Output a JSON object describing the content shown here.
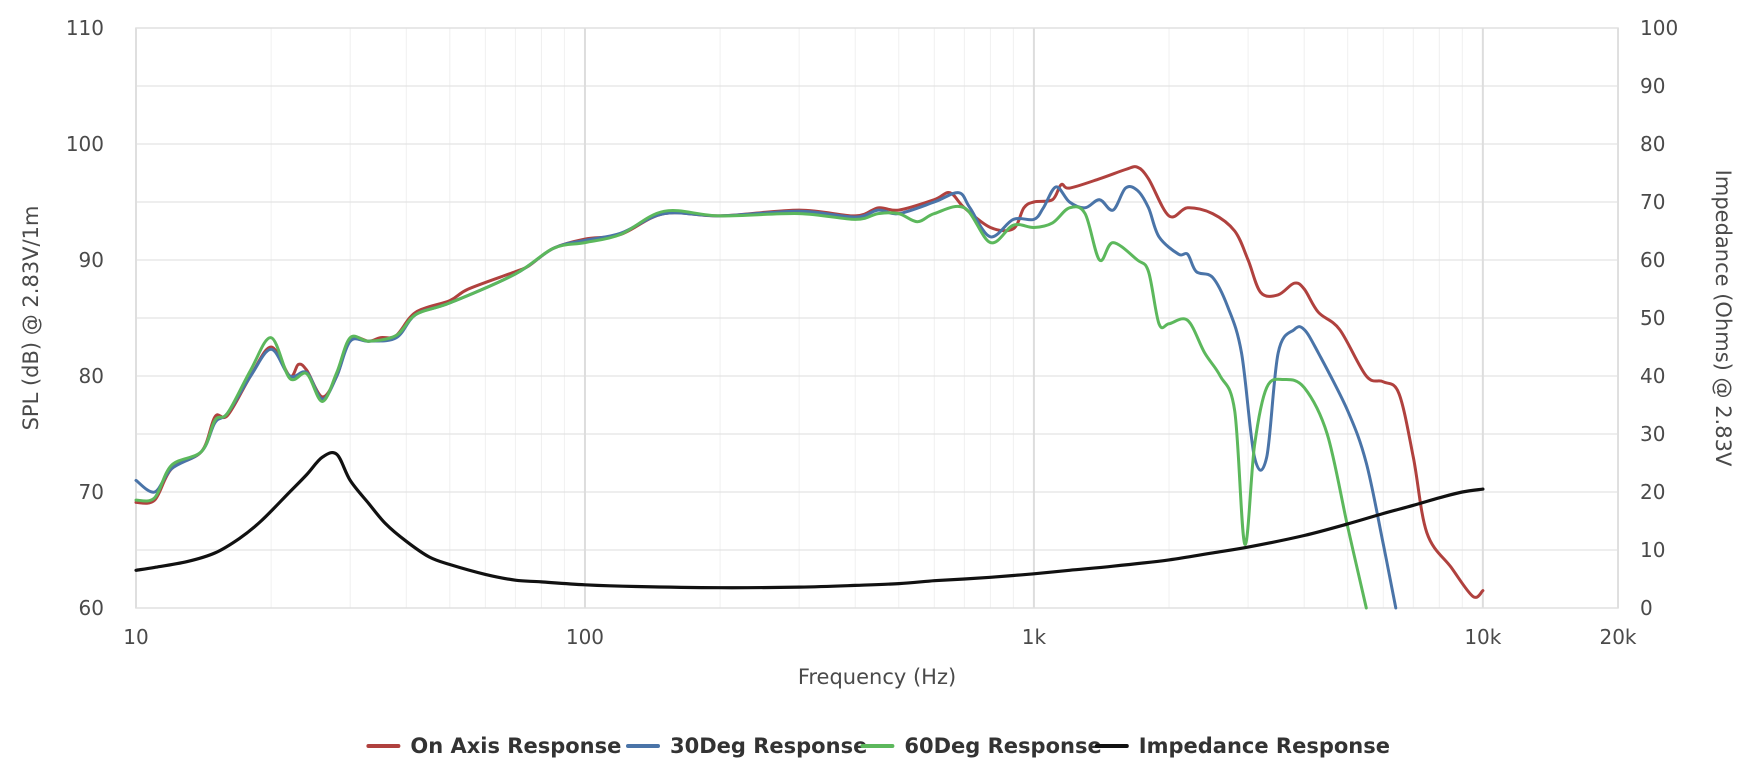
{
  "chart_data": {
    "type": "line",
    "xscale": "log",
    "xlim": [
      10,
      20000
    ],
    "x_ticks": [
      {
        "value": 10,
        "label": "10"
      },
      {
        "value": 100,
        "label": "100"
      },
      {
        "value": 1000,
        "label": "1k"
      },
      {
        "value": 10000,
        "label": "10k"
      },
      {
        "value": 20000,
        "label": "20k"
      }
    ],
    "xlabel": "Frequency (Hz)",
    "ylabel_left": "SPL (dB) @ 2.83V/1m",
    "ylabel_right": "Impedance (Ohms) @ 2.83V",
    "ylim_left": [
      60,
      110
    ],
    "ylim_right": [
      0,
      100
    ],
    "y_ticks_left": [
      "60",
      "70",
      "80",
      "90",
      "100",
      "110"
    ],
    "y_ticks_right": [
      "0",
      "10",
      "20",
      "30",
      "40",
      "50",
      "60",
      "70",
      "80",
      "90",
      "100"
    ],
    "grid": true,
    "legend_position": "bottom",
    "series": [
      {
        "name": "On Axis Response",
        "axis": "left",
        "color": "#b0413e",
        "points": [
          [
            10,
            69.1
          ],
          [
            11,
            69.3
          ],
          [
            12,
            72
          ],
          [
            14,
            73.5
          ],
          [
            15,
            76.5
          ],
          [
            16,
            76.6
          ],
          [
            18,
            80
          ],
          [
            20,
            82.5
          ],
          [
            22,
            80
          ],
          [
            23,
            81
          ],
          [
            24,
            80.5
          ],
          [
            26,
            78.2
          ],
          [
            28,
            80
          ],
          [
            30,
            83.2
          ],
          [
            33,
            83
          ],
          [
            35,
            83.3
          ],
          [
            38,
            83.5
          ],
          [
            42,
            85.5
          ],
          [
            50,
            86.5
          ],
          [
            55,
            87.5
          ],
          [
            70,
            89
          ],
          [
            75,
            89.5
          ],
          [
            85,
            91
          ],
          [
            100,
            91.8
          ],
          [
            120,
            92.2
          ],
          [
            150,
            94
          ],
          [
            200,
            93.8
          ],
          [
            300,
            94.3
          ],
          [
            400,
            93.8
          ],
          [
            450,
            94.5
          ],
          [
            500,
            94.3
          ],
          [
            600,
            95.2
          ],
          [
            650,
            95.8
          ],
          [
            700,
            94.5
          ],
          [
            800,
            92.8
          ],
          [
            900,
            92.7
          ],
          [
            950,
            94.5
          ],
          [
            1000,
            95
          ],
          [
            1100,
            95.2
          ],
          [
            1150,
            96.5
          ],
          [
            1200,
            96.2
          ],
          [
            1400,
            97
          ],
          [
            1600,
            97.8
          ],
          [
            1700,
            98
          ],
          [
            1800,
            97
          ],
          [
            2000,
            93.8
          ],
          [
            2200,
            94.5
          ],
          [
            2500,
            94
          ],
          [
            2800,
            92.5
          ],
          [
            3000,
            90
          ],
          [
            3200,
            87.2
          ],
          [
            3500,
            87
          ],
          [
            3800,
            88
          ],
          [
            4000,
            87.5
          ],
          [
            4300,
            85.5
          ],
          [
            4800,
            84
          ],
          [
            5500,
            80
          ],
          [
            6000,
            79.5
          ],
          [
            6500,
            78.5
          ],
          [
            7000,
            73
          ],
          [
            7500,
            66.5
          ],
          [
            8500,
            63.5
          ],
          [
            9500,
            61
          ],
          [
            10000,
            61.5
          ]
        ]
      },
      {
        "name": "30Deg Response",
        "axis": "left",
        "color": "#4a74a8",
        "points": [
          [
            10,
            71
          ],
          [
            11,
            70
          ],
          [
            12,
            72
          ],
          [
            14,
            73.5
          ],
          [
            15,
            76
          ],
          [
            16,
            76.8
          ],
          [
            18,
            80
          ],
          [
            20,
            82.3
          ],
          [
            22,
            80
          ],
          [
            24,
            80.3
          ],
          [
            26,
            78
          ],
          [
            28,
            80
          ],
          [
            30,
            83
          ],
          [
            33,
            83
          ],
          [
            38,
            83.3
          ],
          [
            42,
            85.3
          ],
          [
            50,
            86.3
          ],
          [
            70,
            88.8
          ],
          [
            85,
            91
          ],
          [
            100,
            91.7
          ],
          [
            120,
            92.3
          ],
          [
            150,
            94
          ],
          [
            200,
            93.8
          ],
          [
            300,
            94.2
          ],
          [
            400,
            93.7
          ],
          [
            450,
            94.3
          ],
          [
            500,
            94
          ],
          [
            600,
            95
          ],
          [
            680,
            95.8
          ],
          [
            720,
            94.5
          ],
          [
            800,
            92
          ],
          [
            900,
            93.5
          ],
          [
            1000,
            93.5
          ],
          [
            1050,
            94.5
          ],
          [
            1120,
            96.3
          ],
          [
            1200,
            95
          ],
          [
            1300,
            94.5
          ],
          [
            1400,
            95.2
          ],
          [
            1500,
            94.3
          ],
          [
            1600,
            96.2
          ],
          [
            1700,
            96
          ],
          [
            1800,
            94.5
          ],
          [
            1900,
            92
          ],
          [
            2100,
            90.5
          ],
          [
            2200,
            90.5
          ],
          [
            2300,
            89
          ],
          [
            2500,
            88.5
          ],
          [
            2700,
            86
          ],
          [
            2900,
            82
          ],
          [
            3100,
            73
          ],
          [
            3300,
            73
          ],
          [
            3500,
            82
          ],
          [
            3800,
            84
          ],
          [
            4000,
            84
          ],
          [
            4300,
            82
          ],
          [
            5000,
            77
          ],
          [
            5500,
            72.5
          ],
          [
            6000,
            65.5
          ],
          [
            6400,
            60
          ]
        ]
      },
      {
        "name": "60Deg Response",
        "axis": "left",
        "color": "#5cb85c",
        "points": [
          [
            10,
            69.3
          ],
          [
            11,
            69.5
          ],
          [
            12,
            72.3
          ],
          [
            14,
            73.5
          ],
          [
            15,
            76.2
          ],
          [
            16,
            76.8
          ],
          [
            18,
            80.5
          ],
          [
            20,
            83.3
          ],
          [
            22,
            79.8
          ],
          [
            24,
            80.2
          ],
          [
            26,
            77.8
          ],
          [
            28,
            80.3
          ],
          [
            30,
            83.3
          ],
          [
            33,
            83
          ],
          [
            38,
            83.5
          ],
          [
            42,
            85.3
          ],
          [
            50,
            86.3
          ],
          [
            70,
            88.8
          ],
          [
            85,
            91
          ],
          [
            100,
            91.5
          ],
          [
            120,
            92.2
          ],
          [
            150,
            94.2
          ],
          [
            200,
            93.8
          ],
          [
            300,
            94
          ],
          [
            400,
            93.5
          ],
          [
            450,
            94
          ],
          [
            500,
            94
          ],
          [
            550,
            93.3
          ],
          [
            600,
            94
          ],
          [
            700,
            94.5
          ],
          [
            800,
            91.5
          ],
          [
            900,
            93
          ],
          [
            1000,
            92.8
          ],
          [
            1100,
            93.2
          ],
          [
            1200,
            94.5
          ],
          [
            1300,
            94
          ],
          [
            1400,
            90
          ],
          [
            1500,
            91.5
          ],
          [
            1700,
            90
          ],
          [
            1800,
            89
          ],
          [
            1900,
            84.5
          ],
          [
            2000,
            84.5
          ],
          [
            2200,
            84.8
          ],
          [
            2400,
            82
          ],
          [
            2600,
            80
          ],
          [
            2800,
            77
          ],
          [
            2950,
            65.5
          ],
          [
            3100,
            74
          ],
          [
            3300,
            79
          ],
          [
            3600,
            79.7
          ],
          [
            4000,
            79
          ],
          [
            4500,
            75
          ],
          [
            5000,
            67
          ],
          [
            5500,
            60
          ]
        ]
      },
      {
        "name": "Impedance Response",
        "axis": "right",
        "color": "#111111",
        "points": [
          [
            10,
            6.5
          ],
          [
            11,
            7
          ],
          [
            13,
            8
          ],
          [
            15,
            9.5
          ],
          [
            17,
            12
          ],
          [
            19,
            15
          ],
          [
            22,
            20
          ],
          [
            24,
            23
          ],
          [
            26,
            26
          ],
          [
            28,
            26.5
          ],
          [
            30,
            22
          ],
          [
            33,
            18
          ],
          [
            36,
            14.5
          ],
          [
            40,
            11.5
          ],
          [
            45,
            8.8
          ],
          [
            50,
            7.5
          ],
          [
            60,
            5.8
          ],
          [
            70,
            4.8
          ],
          [
            80,
            4.5
          ],
          [
            100,
            4
          ],
          [
            130,
            3.7
          ],
          [
            200,
            3.5
          ],
          [
            300,
            3.6
          ],
          [
            400,
            3.9
          ],
          [
            500,
            4.2
          ],
          [
            600,
            4.7
          ],
          [
            700,
            5
          ],
          [
            800,
            5.3
          ],
          [
            900,
            5.6
          ],
          [
            1000,
            5.9
          ],
          [
            1200,
            6.5
          ],
          [
            1500,
            7.2
          ],
          [
            2000,
            8.3
          ],
          [
            2500,
            9.5
          ],
          [
            3000,
            10.5
          ],
          [
            4000,
            12.5
          ],
          [
            5000,
            14.5
          ],
          [
            6000,
            16.3
          ],
          [
            7000,
            17.7
          ],
          [
            8000,
            19
          ],
          [
            9000,
            20
          ],
          [
            10000,
            20.5
          ]
        ]
      }
    ]
  }
}
